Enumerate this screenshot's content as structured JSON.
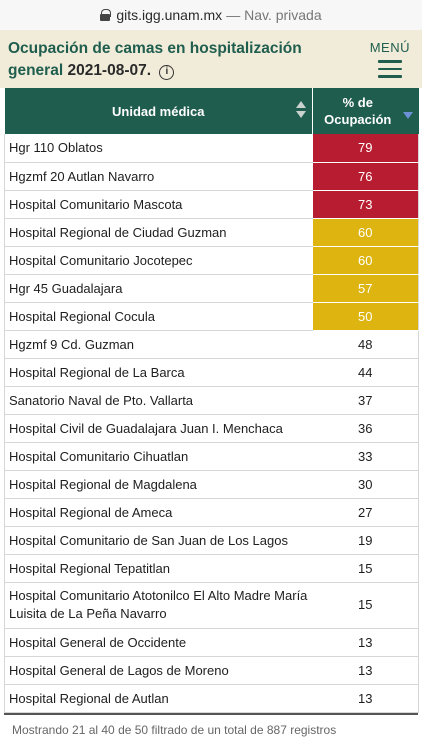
{
  "browser": {
    "url": "gits.igg.unam.mx",
    "mode": "— Nav. privada"
  },
  "header": {
    "title": "Ocupación de camas en hospitalización general",
    "date": "2021-08-07.",
    "info_glyph": "i",
    "menu_label": "MENÚ"
  },
  "colors": {
    "brand": "#1f5d4e",
    "high": "#b81c30",
    "medium": "#ddb410",
    "low": "#ffffff",
    "header_bg": "#f1ecd9"
  },
  "table": {
    "columns": [
      "Unidad médica",
      "% de Ocupación"
    ],
    "rows": [
      {
        "name": "Hgr 110 Oblatos",
        "value": "79",
        "level": "high"
      },
      {
        "name": "Hgzmf 20 Autlan Navarro",
        "value": "76",
        "level": "high"
      },
      {
        "name": "Hospital Comunitario Mascota",
        "value": "73",
        "level": "high"
      },
      {
        "name": "Hospital Regional de Ciudad Guzman",
        "value": "60",
        "level": "medium"
      },
      {
        "name": "Hospital Comunitario Jocotepec",
        "value": "60",
        "level": "medium"
      },
      {
        "name": "Hgr 45 Guadalajara",
        "value": "57",
        "level": "medium"
      },
      {
        "name": "Hospital Regional Cocula",
        "value": "50",
        "level": "medium"
      },
      {
        "name": "Hgzmf 9 Cd. Guzman",
        "value": "48",
        "level": "low"
      },
      {
        "name": "Hospital Regional de La Barca",
        "value": "44",
        "level": "low"
      },
      {
        "name": "Sanatorio Naval de Pto. Vallarta",
        "value": "37",
        "level": "low"
      },
      {
        "name": "Hospital Civil de Guadalajara Juan I. Menchaca",
        "value": "36",
        "level": "low"
      },
      {
        "name": "Hospital Comunitario Cihuatlan",
        "value": "33",
        "level": "low"
      },
      {
        "name": "Hospital Regional de Magdalena",
        "value": "30",
        "level": "low"
      },
      {
        "name": "Hospital Regional de Ameca",
        "value": "27",
        "level": "low"
      },
      {
        "name": "Hospital Comunitario de San Juan de Los Lagos",
        "value": "19",
        "level": "low"
      },
      {
        "name": "Hospital Regional Tepatitlan",
        "value": "15",
        "level": "low"
      },
      {
        "name": "Hospital Comunitario Atotonilco El Alto Madre María Luisita de La Peña Navarro",
        "value": "15",
        "level": "low"
      },
      {
        "name": "Hospital General de Occidente",
        "value": "13",
        "level": "low"
      },
      {
        "name": "Hospital General de Lagos de Moreno",
        "value": "13",
        "level": "low"
      },
      {
        "name": "Hospital Regional de Autlan",
        "value": "13",
        "level": "low"
      }
    ]
  },
  "footer": {
    "info": "Mostrando 21 al 40 de 50 filtrado de un total de 887 registros"
  }
}
